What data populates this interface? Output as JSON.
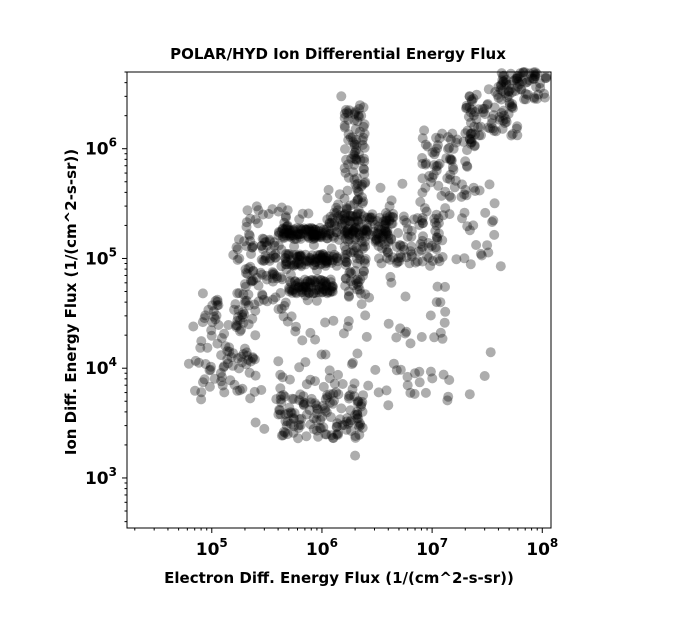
{
  "chart_data": {
    "type": "scatter",
    "title": "POLAR/HYD  Ion Differential Energy Flux",
    "xlabel": "Electron Diff. Energy Flux (1/(cm^2-s-sr))",
    "ylabel": "Ion Diff. Energy Flux (1/(cm^2-s-sr))",
    "xscale": "log",
    "yscale": "log",
    "xlim": [
      17000,
      120000000
    ],
    "ylim": [
      350,
      5000000
    ],
    "xticks": [
      {
        "value": 100000,
        "base": "10",
        "exp": "5"
      },
      {
        "value": 1000000,
        "base": "10",
        "exp": "6"
      },
      {
        "value": 10000000,
        "base": "10",
        "exp": "7"
      },
      {
        "value": 100000000,
        "base": "10",
        "exp": "8"
      }
    ],
    "yticks": [
      {
        "value": 1000,
        "base": "10",
        "exp": "3"
      },
      {
        "value": 10000,
        "base": "10",
        "exp": "4"
      },
      {
        "value": 100000,
        "base": "10",
        "exp": "5"
      },
      {
        "value": 1000000,
        "base": "10",
        "exp": "6"
      }
    ],
    "grid": false,
    "legend": "none",
    "marker_color": "#000000",
    "marker_opacity": 0.32,
    "clusters": [
      {
        "x_range": [
          400000,
          1200000
        ],
        "y_range": [
          150000,
          190000
        ],
        "n": 90
      },
      {
        "x_range": [
          450000,
          1400000
        ],
        "y_range": [
          85000,
          110000
        ],
        "n": 80
      },
      {
        "x_range": [
          500000,
          1300000
        ],
        "y_range": [
          48000,
          65000
        ],
        "n": 80
      },
      {
        "x_range": [
          1000000,
          4500000
        ],
        "y_range": [
          140000,
          260000
        ],
        "n": 90
      },
      {
        "x_range": [
          1600000,
          2500000
        ],
        "y_range": [
          2500000,
          40000
        ],
        "n": 160
      },
      {
        "x_range": [
          400000,
          2500000
        ],
        "y_range": [
          2300,
          6000
        ],
        "n": 120
      },
      {
        "x_range": [
          200000,
          500000
        ],
        "y_range": [
          60000,
          300000
        ],
        "n": 60
      },
      {
        "x_range": [
          70000,
          250000
        ],
        "y_range": [
          6000,
          50000
        ],
        "n": 90
      },
      {
        "x_range": [
          150000,
          400000
        ],
        "y_range": [
          40000,
          150000
        ],
        "n": 40
      },
      {
        "x_range": [
          3000000,
          12000000
        ],
        "y_range": [
          90000,
          250000
        ],
        "n": 60
      },
      {
        "x_range": [
          8000000,
          25000000
        ],
        "y_range": [
          350000,
          1500000
        ],
        "n": 70
      },
      {
        "x_range": [
          20000000,
          60000000
        ],
        "y_range": [
          1200000,
          3500000
        ],
        "n": 70
      },
      {
        "x_range": [
          40000000,
          110000000
        ],
        "y_range": [
          2800000,
          5000000
        ],
        "n": 70
      },
      {
        "x_range": [
          300000,
          15000000
        ],
        "y_range": [
          5000,
          300000
        ],
        "n": 110
      },
      {
        "x_range": [
          100000,
          2000000
        ],
        "y_range": [
          3000,
          40000
        ],
        "n": 40
      },
      {
        "x_range": [
          1000000,
          40000000
        ],
        "y_range": [
          80000,
          500000
        ],
        "n": 60
      }
    ],
    "points": [
      {
        "x": 1500000,
        "y": 3000000
      },
      {
        "x": 2000000,
        "y": 1600
      },
      {
        "x": 42000000,
        "y": 85000
      },
      {
        "x": 62000,
        "y": 11000
      },
      {
        "x": 80000,
        "y": 5200
      },
      {
        "x": 83000,
        "y": 48000
      },
      {
        "x": 68000,
        "y": 24000
      },
      {
        "x": 1200000,
        "y": 240000
      },
      {
        "x": 3400000,
        "y": 440000
      },
      {
        "x": 6000000,
        "y": 7000
      },
      {
        "x": 14000000,
        "y": 5500
      },
      {
        "x": 22000000,
        "y": 5800
      },
      {
        "x": 30000000,
        "y": 8500
      },
      {
        "x": 34000000,
        "y": 14000
      },
      {
        "x": 900000,
        "y": 2700
      },
      {
        "x": 250000,
        "y": 3200
      },
      {
        "x": 300000,
        "y": 2800
      },
      {
        "x": 4500000,
        "y": 11000
      },
      {
        "x": 7000000,
        "y": 9000
      },
      {
        "x": 12000000,
        "y": 21000
      },
      {
        "x": 13000000,
        "y": 26000
      },
      {
        "x": 11000000,
        "y": 40000
      },
      {
        "x": 4000000,
        "y": 4600
      }
    ]
  }
}
